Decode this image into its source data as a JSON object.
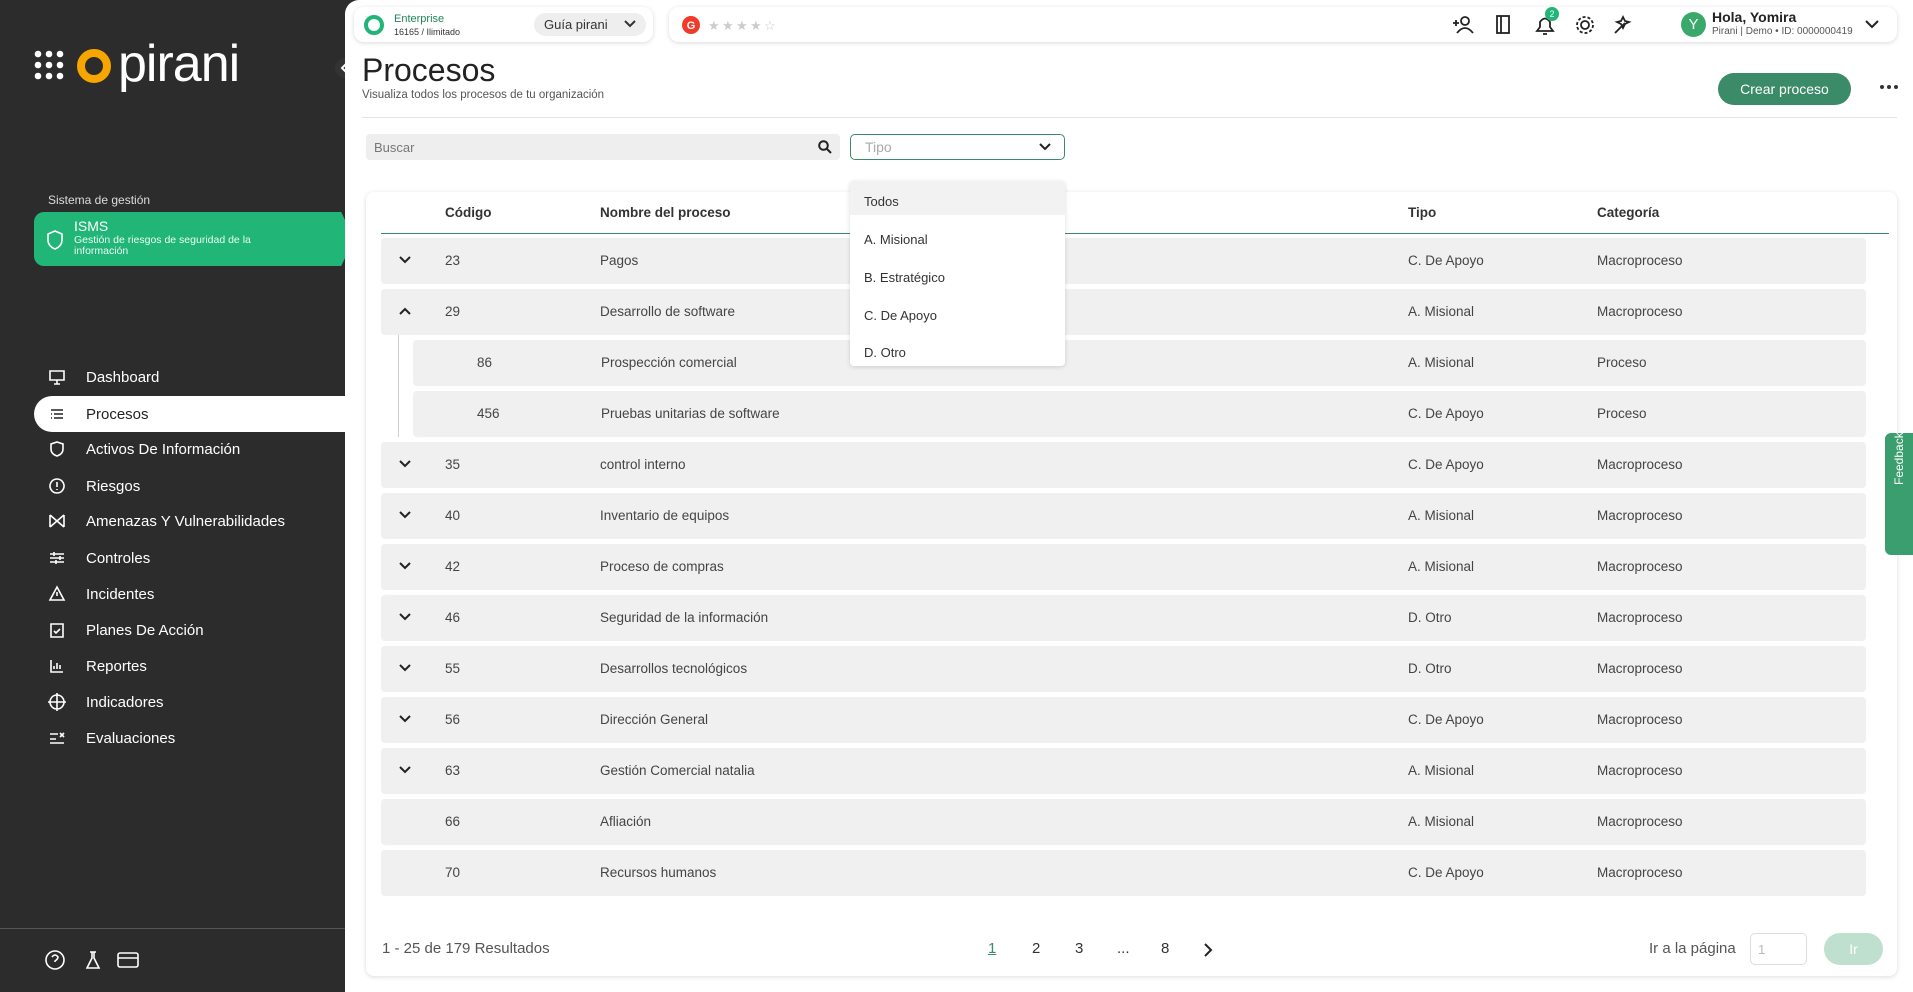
{
  "sidebar": {
    "logo": "pirani",
    "section_label": "Sistema de gestión",
    "system": {
      "title": "ISMS",
      "subtitle": "Gestión de riesgos de seguridad de la información"
    },
    "nav": [
      "Dashboard",
      "Procesos",
      "Activos De Información",
      "Riesgos",
      "Amenazas Y Vulnerabilidades",
      "Controles",
      "Incidentes",
      "Planes De Acción",
      "Reportes",
      "Indicadores",
      "Evaluaciones"
    ],
    "active_nav": 1
  },
  "topbar": {
    "plan": "Enterprise",
    "plan_detail": "16165 / Ilimitado",
    "guide": "Guía pirani",
    "notifications": 2,
    "avatar": "Y",
    "greeting": "Hola, Yomira",
    "account": "Pirani | Demo • ID: 0000000419"
  },
  "header": {
    "title": "Procesos",
    "subtitle": "Visualiza todos los procesos de tu organización",
    "create_button": "Crear proceso"
  },
  "filters": {
    "search_placeholder": "Buscar",
    "type_placeholder": "Tipo",
    "type_options": [
      "Todos",
      "A. Misional",
      "B. Estratégico",
      "C. De Apoyo",
      "D. Otro"
    ]
  },
  "table": {
    "columns": [
      "Código",
      "Nombre del proceso",
      "Tipo",
      "Categoría"
    ],
    "rows": [
      {
        "code": 23,
        "name": "Pagos",
        "type": "C. De Apoyo",
        "category": "Macroproceso",
        "toggle": "collapsed"
      },
      {
        "code": 29,
        "name": "Desarrollo de software",
        "type": "A. Misional",
        "category": "Macroproceso",
        "toggle": "expanded",
        "children": [
          {
            "code": 86,
            "name": "Prospección comercial",
            "type": "A. Misional",
            "category": "Proceso"
          },
          {
            "code": 456,
            "name": "Pruebas unitarias de software",
            "type": "C. De Apoyo",
            "category": "Proceso"
          }
        ]
      },
      {
        "code": 35,
        "name": "control interno",
        "type": "C. De Apoyo",
        "category": "Macroproceso",
        "toggle": "collapsed"
      },
      {
        "code": 40,
        "name": "Inventario de equipos",
        "type": "A. Misional",
        "category": "Macroproceso",
        "toggle": "collapsed"
      },
      {
        "code": 42,
        "name": "Proceso de compras",
        "type": "A. Misional",
        "category": "Macroproceso",
        "toggle": "collapsed"
      },
      {
        "code": 46,
        "name": "Seguridad de la información",
        "type": "D. Otro",
        "category": "Macroproceso",
        "toggle": "collapsed"
      },
      {
        "code": 55,
        "name": "Desarrollos tecnológicos",
        "type": "D. Otro",
        "category": "Macroproceso",
        "toggle": "collapsed"
      },
      {
        "code": 56,
        "name": "Dirección General",
        "type": "C. De Apoyo",
        "category": "Macroproceso",
        "toggle": "collapsed"
      },
      {
        "code": 63,
        "name": "Gestión Comercial natalia",
        "type": "A. Misional",
        "category": "Macroproceso",
        "toggle": "collapsed"
      },
      {
        "code": 66,
        "name": "Afliación",
        "type": "A. Misional",
        "category": "Macroproceso",
        "toggle": "none"
      },
      {
        "code": 70,
        "name": "Recursos humanos",
        "type": "C. De Apoyo",
        "category": "Macroproceso",
        "toggle": "none"
      }
    ]
  },
  "pagination": {
    "summary": "1 - 25 de 179 Resultados",
    "pages": [
      "1",
      "2",
      "3",
      "...",
      "8"
    ],
    "current": 0,
    "goto_label": "Ir a la página",
    "goto_placeholder": "1",
    "goto_button": "Ir"
  },
  "feedback": "Feedback"
}
